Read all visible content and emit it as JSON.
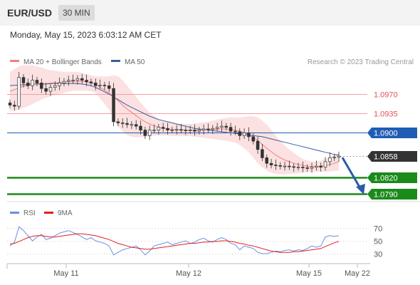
{
  "header": {
    "symbol": "EUR/USD",
    "timeframe": "30 MIN"
  },
  "datetime": "Monday, May 15, 2023 6:03:12 AM CET",
  "legend": {
    "ma20": "MA 20 + Bollinger Bands",
    "ma50": "MA 50",
    "credit": "Research © 2023 Trading Central",
    "rsi": "RSI",
    "ma9": "9MA"
  },
  "colors": {
    "ma20": "#f08080",
    "ma50": "#3a5fa0",
    "band": "#f7c9c9",
    "resistance": "#e0505a",
    "support": "#1a8a1a",
    "pivot": "#1f5db5",
    "price_tag": "#333333",
    "arrow": "#2a5caa",
    "rsi": "#6a8fe0",
    "rsi_ma": "#e02020"
  },
  "chart_data": [
    {
      "type": "candlestick",
      "instrument": "EUR/USD",
      "timeframe": "30 MIN",
      "x_ticks": [
        "May 11",
        "May 12",
        "May 15",
        "May 22"
      ],
      "levels": [
        {
          "label": "1.0970",
          "value": 1.097,
          "kind": "resistance"
        },
        {
          "label": "1.0935",
          "value": 1.0935,
          "kind": "resistance"
        },
        {
          "label": "1.0900",
          "value": 1.09,
          "kind": "pivot"
        },
        {
          "label": "1.0858",
          "value": 1.0858,
          "kind": "last_price"
        },
        {
          "label": "1.0820",
          "value": 1.082,
          "kind": "support"
        },
        {
          "label": "1.0790",
          "value": 1.079,
          "kind": "support"
        }
      ],
      "forecast": {
        "from": 1.0858,
        "to": 1.079,
        "direction": "down"
      },
      "close": [
        1.095,
        1.0948,
        1.1,
        1.099,
        1.0985,
        1.0995,
        1.099,
        1.098,
        1.0975,
        1.0982,
        1.0985,
        1.099,
        1.0993,
        1.0995,
        1.0995,
        1.0998,
        1.0995,
        1.0992,
        1.099,
        1.0985,
        1.0986,
        1.0985,
        1.098,
        1.092,
        1.0918,
        1.0917,
        1.0915,
        1.0915,
        1.0912,
        1.0905,
        1.0895,
        1.0905,
        1.0905,
        1.091,
        1.0908,
        1.0905,
        1.0905,
        1.0906,
        1.0905,
        1.0904,
        1.0905,
        1.0903,
        1.0905,
        1.0907,
        1.0906,
        1.0908,
        1.091,
        1.0912,
        1.091,
        1.0903,
        1.0902,
        1.0895,
        1.09,
        1.0893,
        1.0885,
        1.087,
        1.0855,
        1.0845,
        1.0842,
        1.0841,
        1.084,
        1.084,
        1.0839,
        1.0838,
        1.0838,
        1.0837,
        1.0836,
        1.0838,
        1.084,
        1.0838,
        1.0848,
        1.0855,
        1.0856,
        1.0858
      ],
      "ma20": [
        1.0975,
        1.0978,
        1.0981,
        1.0984,
        1.0986,
        1.0988,
        1.0989,
        1.0989,
        1.0989,
        1.099,
        1.099,
        1.0991,
        1.0992,
        1.0992,
        1.0993,
        1.0993,
        1.0993,
        1.0992,
        1.099,
        1.0987,
        1.0982,
        1.0977,
        1.0972,
        1.0965,
        1.0958,
        1.095,
        1.0943,
        1.0937,
        1.0931,
        1.0925,
        1.092,
        1.0916,
        1.0913,
        1.091,
        1.0908,
        1.0907,
        1.0906,
        1.0906,
        1.0905,
        1.0905,
        1.0905,
        1.0905,
        1.0905,
        1.0905,
        1.0906,
        1.0906,
        1.0907,
        1.0907,
        1.0907,
        1.0906,
        1.0905,
        1.0903,
        1.09,
        1.0897,
        1.0892,
        1.0886,
        1.0879,
        1.0872,
        1.0866,
        1.086,
        1.0855,
        1.0851,
        1.0848,
        1.0845,
        1.0843,
        1.0841,
        1.084,
        1.0839,
        1.0839,
        1.084,
        1.0841,
        1.0843,
        1.0845,
        1.0848
      ],
      "ma50": [
        1.0985,
        1.0986,
        1.0986,
        1.0987,
        1.0987,
        1.0988,
        1.0988,
        1.0988,
        1.0988,
        1.0989,
        1.0989,
        1.0989,
        1.0989,
        1.0989,
        1.0989,
        1.0989,
        1.0988,
        1.0987,
        1.0985,
        1.0982,
        1.0978,
        1.0974,
        1.097,
        1.0965,
        1.096,
        1.0955,
        1.095,
        1.0946,
        1.0942,
        1.0938,
        1.0934,
        1.093,
        1.0927,
        1.0924,
        1.0922,
        1.092,
        1.0918,
        1.0916,
        1.0914,
        1.0912,
        1.091,
        1.0908,
        1.0907,
        1.0906,
        1.0905,
        1.0904,
        1.0903,
        1.0902,
        1.0901,
        1.09,
        1.0899,
        1.0898,
        1.0897,
        1.0896,
        1.0895,
        1.0894,
        1.0893,
        1.0891,
        1.0889,
        1.0887,
        1.0885,
        1.0883,
        1.0881,
        1.0879,
        1.0877,
        1.0875,
        1.0873,
        1.0871,
        1.0869,
        1.0867,
        1.0865,
        1.0863,
        1.0861,
        1.086
      ],
      "bb_upper": [
        1.101,
        1.1015,
        1.102,
        1.1022,
        1.1022,
        1.1022,
        1.102,
        1.1018,
        1.1015,
        1.1013,
        1.1012,
        1.1011,
        1.101,
        1.101,
        1.101,
        1.101,
        1.1008,
        1.1006,
        1.1004,
        1.1002,
        1.1002,
        1.1002,
        1.1002,
        1.1004,
        1.1002,
        1.0995,
        1.0985,
        1.0975,
        1.0965,
        1.0955,
        1.0945,
        1.0937,
        1.093,
        1.0925,
        1.0922,
        1.092,
        1.0918,
        1.0917,
        1.0916,
        1.0916,
        1.0916,
        1.0917,
        1.0918,
        1.0919,
        1.092,
        1.0922,
        1.0924,
        1.0926,
        1.0927,
        1.0928,
        1.0928,
        1.0928,
        1.0929,
        1.093,
        1.093,
        1.0928,
        1.0922,
        1.0915,
        1.0905,
        1.0895,
        1.0885,
        1.0877,
        1.087,
        1.0864,
        1.0858,
        1.0853,
        1.085,
        1.0848,
        1.0848,
        1.085,
        1.0853,
        1.0857,
        1.086,
        1.0862
      ],
      "bb_lower": [
        1.094,
        1.094,
        1.0942,
        1.0945,
        1.0948,
        1.0952,
        1.0956,
        1.096,
        1.0963,
        1.0966,
        1.0968,
        1.097,
        1.0972,
        1.0974,
        1.0976,
        1.0976,
        1.0976,
        1.0976,
        1.0975,
        1.0972,
        1.0962,
        1.0952,
        1.0942,
        1.0925,
        1.0912,
        1.0902,
        1.0896,
        1.0893,
        1.0892,
        1.0892,
        1.0893,
        1.0894,
        1.0895,
        1.0895,
        1.0895,
        1.0895,
        1.0894,
        1.0894,
        1.0894,
        1.0894,
        1.0894,
        1.0893,
        1.0892,
        1.0891,
        1.089,
        1.0889,
        1.0888,
        1.0887,
        1.0886,
        1.0884,
        1.0882,
        1.0878,
        1.0872,
        1.0865,
        1.0855,
        1.0845,
        1.0838,
        1.0832,
        1.0828,
        1.0826,
        1.0825,
        1.0825,
        1.0826,
        1.0826,
        1.0827,
        1.0828,
        1.0829,
        1.083,
        1.083,
        1.083,
        1.083,
        1.083,
        1.0831,
        1.0832
      ]
    },
    {
      "type": "line",
      "title": "",
      "x_ticks": [
        "May 11",
        "May 12",
        "May 15",
        "May 22"
      ],
      "y_ticks": [
        70,
        50,
        30
      ],
      "ylim": [
        20,
        80
      ],
      "series": [
        {
          "name": "RSI",
          "values": [
            42,
            48,
            72,
            66,
            58,
            50,
            56,
            60,
            52,
            54,
            58,
            62,
            64,
            66,
            63,
            60,
            56,
            52,
            55,
            50,
            48,
            46,
            42,
            28,
            32,
            36,
            38,
            40,
            42,
            36,
            28,
            34,
            42,
            44,
            46,
            48,
            44,
            46,
            48,
            50,
            46,
            48,
            52,
            54,
            50,
            48,
            52,
            55,
            52,
            46,
            44,
            36,
            42,
            40,
            38,
            32,
            30,
            30,
            32,
            34,
            33,
            35,
            36,
            34,
            36,
            35,
            38,
            42,
            40,
            42,
            56,
            58,
            57,
            58
          ]
        },
        {
          "name": "9MA",
          "values": [
            45,
            46,
            49,
            52,
            55,
            57,
            58,
            58,
            57,
            56,
            56,
            57,
            58,
            59,
            60,
            61,
            61,
            60,
            59,
            58,
            56,
            54,
            52,
            49,
            46,
            44,
            42,
            40,
            39,
            38,
            37,
            37,
            38,
            39,
            40,
            41,
            42,
            43,
            44,
            45,
            46,
            46,
            47,
            48,
            48,
            49,
            49,
            50,
            50,
            49,
            48,
            46,
            45,
            43,
            42,
            40,
            38,
            36,
            34,
            33,
            32,
            32,
            32,
            33,
            33,
            34,
            35,
            36,
            37,
            38,
            41,
            44,
            47,
            49
          ]
        }
      ]
    }
  ]
}
